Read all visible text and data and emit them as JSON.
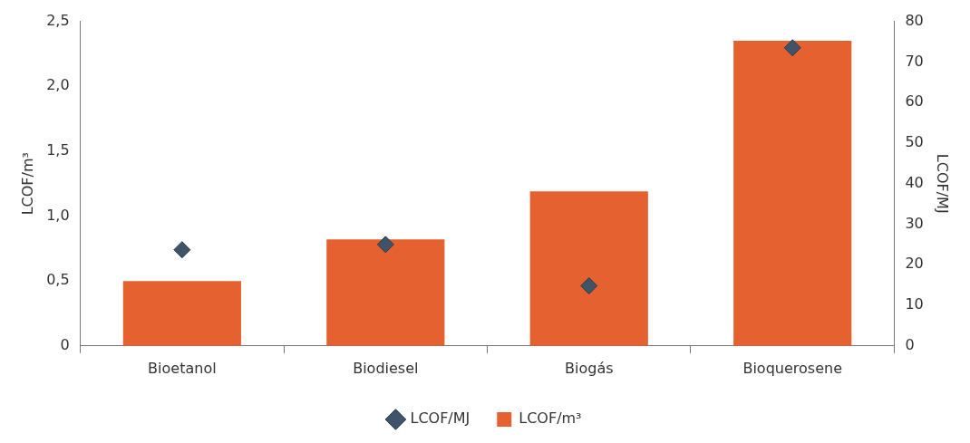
{
  "chart_data": {
    "type": "bar",
    "categories": [
      "Bioetanol",
      "Biodiesel",
      "Biogás",
      "Bioquerosene"
    ],
    "series": [
      {
        "name": "LCOF/MJ",
        "type": "scatter",
        "axis": "y2",
        "marker": "diamond",
        "color": "#3f5468",
        "values": [
          23.7,
          25,
          14.8,
          73.5
        ]
      },
      {
        "name": "LCOF/m³",
        "color": "#e5612f",
        "values": [
          0.5,
          0.82,
          1.19,
          2.35
        ]
      }
    ],
    "ylabel": "LCOF/m³",
    "y2label": "LCOF/MJ",
    "ylim": [
      0,
      2.5
    ],
    "yticks": [
      {
        "value": 0,
        "label": "0"
      },
      {
        "value": 0.5,
        "label": "0,5"
      },
      {
        "value": 1,
        "label": "1,0"
      },
      {
        "value": 1.5,
        "label": "1,5"
      },
      {
        "value": 2,
        "label": "2,0"
      },
      {
        "value": 2.5,
        "label": "2,5"
      }
    ],
    "y2lim": [
      0,
      80
    ],
    "y2ticks": [
      0,
      10,
      20,
      30,
      40,
      50,
      60,
      70,
      80
    ],
    "grid": false,
    "legend": "bottom"
  }
}
